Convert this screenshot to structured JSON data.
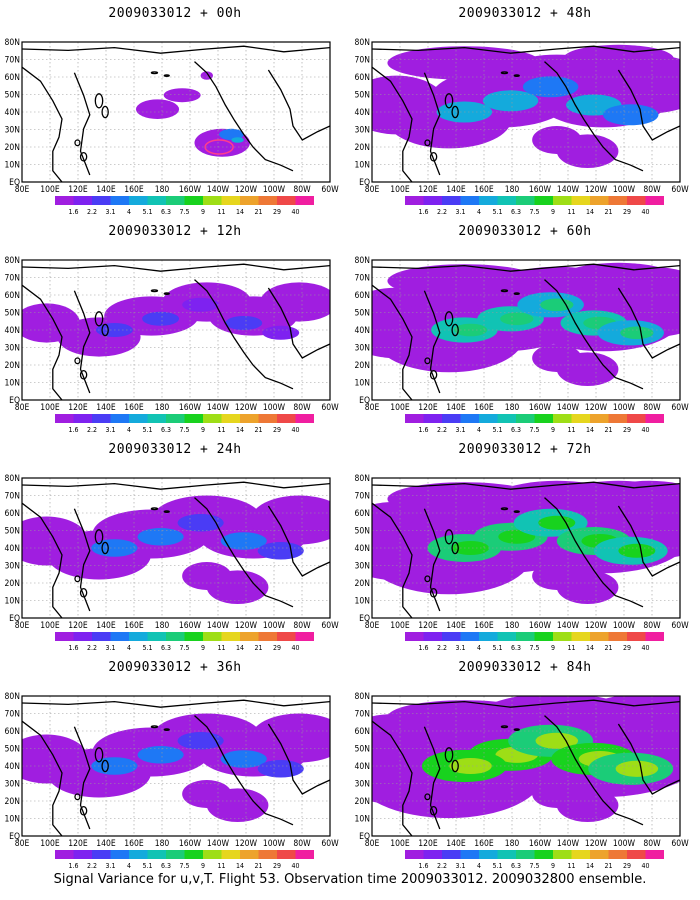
{
  "caption": "Signal Variance for u,v,T. Flight 53. Observation time 2009033012. 2009032800 ensemble.",
  "lat_labels": [
    "EQ",
    "10N",
    "20N",
    "30N",
    "40N",
    "50N",
    "60N",
    "70N",
    "80N"
  ],
  "lon_labels": [
    "80E",
    "100E",
    "120E",
    "140E",
    "160E",
    "180",
    "160W",
    "140W",
    "120W",
    "100W",
    "80W",
    "60W"
  ],
  "colorbar": {
    "labels": [
      "1.6",
      "2.2",
      "3.1",
      "4",
      "5.1",
      "6.3",
      "7.5",
      "9",
      "11",
      "14",
      "21",
      "29",
      "40"
    ],
    "colors": [
      "#a01ee0",
      "#7e22f0",
      "#4a3cf5",
      "#1e78f5",
      "#14aadc",
      "#11c3b4",
      "#1bcc78",
      "#18d21e",
      "#9ede16",
      "#e6d61e",
      "#eda32c",
      "#ee7836",
      "#ef4848",
      "#f01ea0"
    ]
  },
  "panels": [
    {
      "title": "2009033012 + 00h",
      "level": 0
    },
    {
      "title": "2009033012 + 48h",
      "level": 3
    },
    {
      "title": "2009033012 + 12h",
      "level": 1
    },
    {
      "title": "2009033012 + 60h",
      "level": 4
    },
    {
      "title": "2009033012 + 24h",
      "level": 2
    },
    {
      "title": "2009033012 + 72h",
      "level": 5
    },
    {
      "title": "2009033012 + 36h",
      "level": 2
    },
    {
      "title": "2009033012 + 84h",
      "level": 6
    }
  ]
}
